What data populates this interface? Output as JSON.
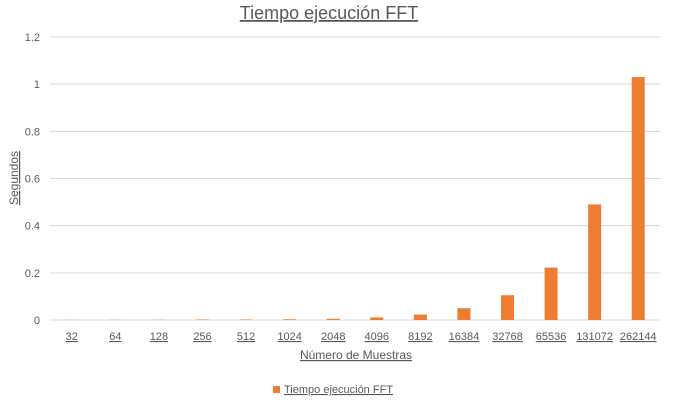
{
  "chart_data": {
    "type": "bar",
    "title": "Tiempo ejecución FFT",
    "xlabel": "Número de Muestras",
    "ylabel": "Segundos",
    "categories": [
      "32",
      "64",
      "128",
      "256",
      "512",
      "1024",
      "2048",
      "4096",
      "8192",
      "16384",
      "32768",
      "65536",
      "131072",
      "262144"
    ],
    "series": [
      {
        "name": "Tiempo ejecución FFT",
        "values": [
          0.0005,
          0.0007,
          0.001,
          0.002,
          0.002,
          0.003,
          0.005,
          0.011,
          0.023,
          0.05,
          0.105,
          0.222,
          0.49,
          1.03
        ],
        "color": "#ED7D31"
      }
    ],
    "ylim": [
      0,
      1.2
    ],
    "yticks": [
      "0",
      "0.2",
      "0.4",
      "0.6",
      "0.8",
      "1",
      "1.2"
    ],
    "grid": true,
    "legend": "bottom"
  }
}
